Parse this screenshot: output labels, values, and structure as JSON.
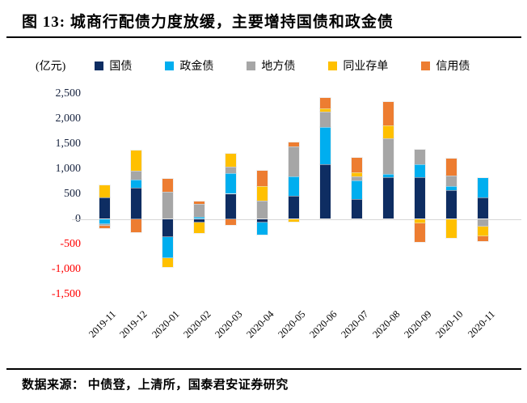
{
  "title": "图 13:  城商行配债力度放缓，主要增持国债和政金债",
  "unit_label": "(亿元)",
  "footer": {
    "source_text": "数据来源：  中债登，上清所，国泰君安证券研究"
  },
  "colors": {
    "guozhai": "#0E2D62",
    "zhengjinzhai": "#00AEEF",
    "difangzhai": "#A6A6A6",
    "tongyecundan": "#FFC000",
    "xinyongzhai": "#ED7D31",
    "negative_tick": "#FF0000",
    "positive_tick": "#17233F",
    "axis_line": "#D6D6D6"
  },
  "chart_data": {
    "type": "bar",
    "stacked": true,
    "title": "图 13:  城商行配债力度放缓，主要增持国债和政金债",
    "ylabel": "(亿元)",
    "ylim": [
      -1500,
      2500
    ],
    "ytick_step": 500,
    "yticks": [
      "2,500",
      "2,000",
      "1,500",
      "1,000",
      "500",
      "0",
      "-500",
      "-1,000",
      "-1,500"
    ],
    "grid": false,
    "legend_position": "top",
    "categories": [
      "2019-11",
      "2019-12",
      "2020-01",
      "2020-02",
      "2020-03",
      "2020-04",
      "2020-05",
      "2020-06",
      "2020-07",
      "2020-08",
      "2020-09",
      "2020-10",
      "2020-11"
    ],
    "series": [
      {
        "name": "国债",
        "color": "#0E2D62",
        "values": [
          425,
          625,
          -360,
          -75,
          500,
          -75,
          460,
          1095,
          390,
          835,
          835,
          575,
          430
        ]
      },
      {
        "name": "政金债",
        "color": "#00AEEF",
        "values": [
          -100,
          165,
          -415,
          45,
          410,
          -245,
          390,
          730,
          375,
          65,
          255,
          80,
          385
        ]
      },
      {
        "name": "地方债",
        "color": "#A6A6A6",
        "values": [
          -40,
          165,
          545,
          255,
          135,
          370,
          600,
          315,
          75,
          700,
          285,
          215,
          -150
        ]
      },
      {
        "name": "同业存单",
        "color": "#FFC000",
        "values": [
          240,
          400,
          -185,
          -205,
          255,
          285,
          -50,
          65,
          95,
          270,
          -95,
          -375,
          -200
        ]
      },
      {
        "name": "信用债",
        "color": "#ED7D31",
        "values": [
          -40,
          -260,
          260,
          45,
          -125,
          305,
          70,
          205,
          280,
          455,
          -360,
          325,
          -90
        ]
      }
    ]
  }
}
